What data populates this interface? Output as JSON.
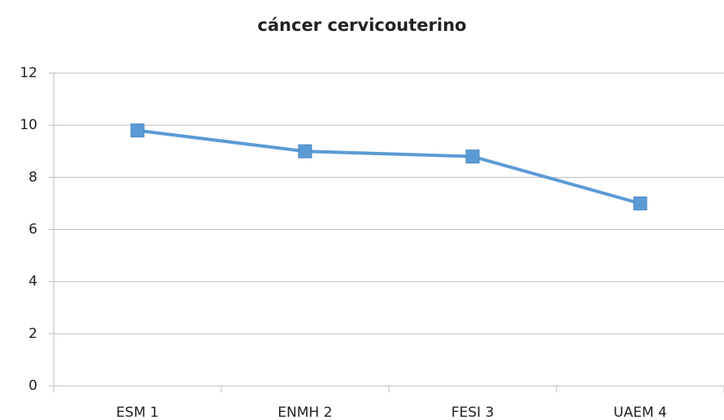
{
  "chart_data": {
    "type": "line",
    "title": "cáncer cervicouterino",
    "categories": [
      "ESM 1",
      "ENMH 2",
      "FESI 3",
      "UAEM 4"
    ],
    "series": [
      {
        "name": null,
        "color": "#5b9bd5",
        "values": [
          9.8,
          9.0,
          8.8,
          7.0
        ]
      }
    ],
    "ylim": [
      0,
      12
    ],
    "yticks": [
      0,
      2,
      4,
      6,
      8,
      10,
      12
    ],
    "grid": true
  }
}
